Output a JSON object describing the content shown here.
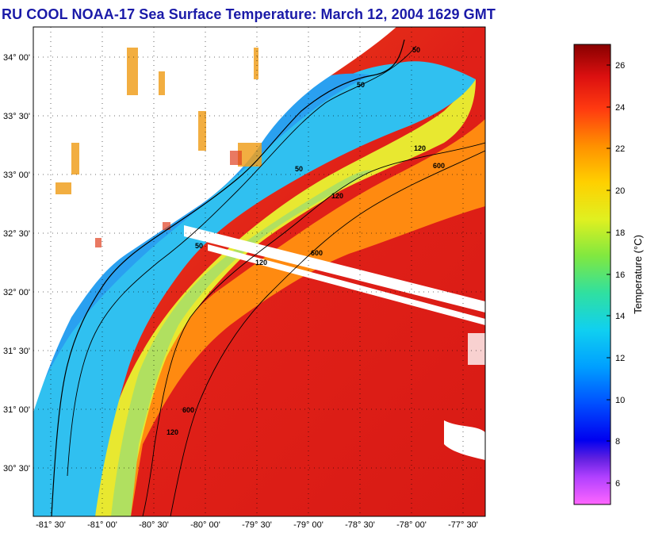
{
  "title": "RU COOL  NOAA-17  Sea Surface Temperature:  March 12, 2004 1629 GMT",
  "map": {
    "lat_ticks": [
      "34° 00'",
      "33° 30'",
      "33° 00'",
      "32° 30'",
      "32° 00'",
      "31° 30'",
      "31° 00'",
      "30° 30'"
    ],
    "lon_ticks": [
      "-81° 30'",
      "-81° 00'",
      "-80° 30'",
      "-80° 00'",
      "-79° 30'",
      "-79° 00'",
      "-78° 30'",
      "-78° 00'",
      "-77° 30'"
    ],
    "isobath_labels": [
      "50",
      "50",
      "50",
      "50",
      "120",
      "120",
      "120",
      "120",
      "600",
      "600",
      "600"
    ]
  },
  "colorbar": {
    "title": "Temperature (°C)",
    "ticks": [
      "26",
      "24",
      "22",
      "20",
      "18",
      "16",
      "14",
      "12",
      "10",
      "8",
      "6"
    ],
    "range": [
      5,
      27
    ]
  },
  "colors": {
    "title": "#1a1aa8",
    "gulf_stream": "#d41818",
    "shelf": "#1ab0f0",
    "mid_shelf": "#f0e028",
    "land": "#ffffff"
  }
}
